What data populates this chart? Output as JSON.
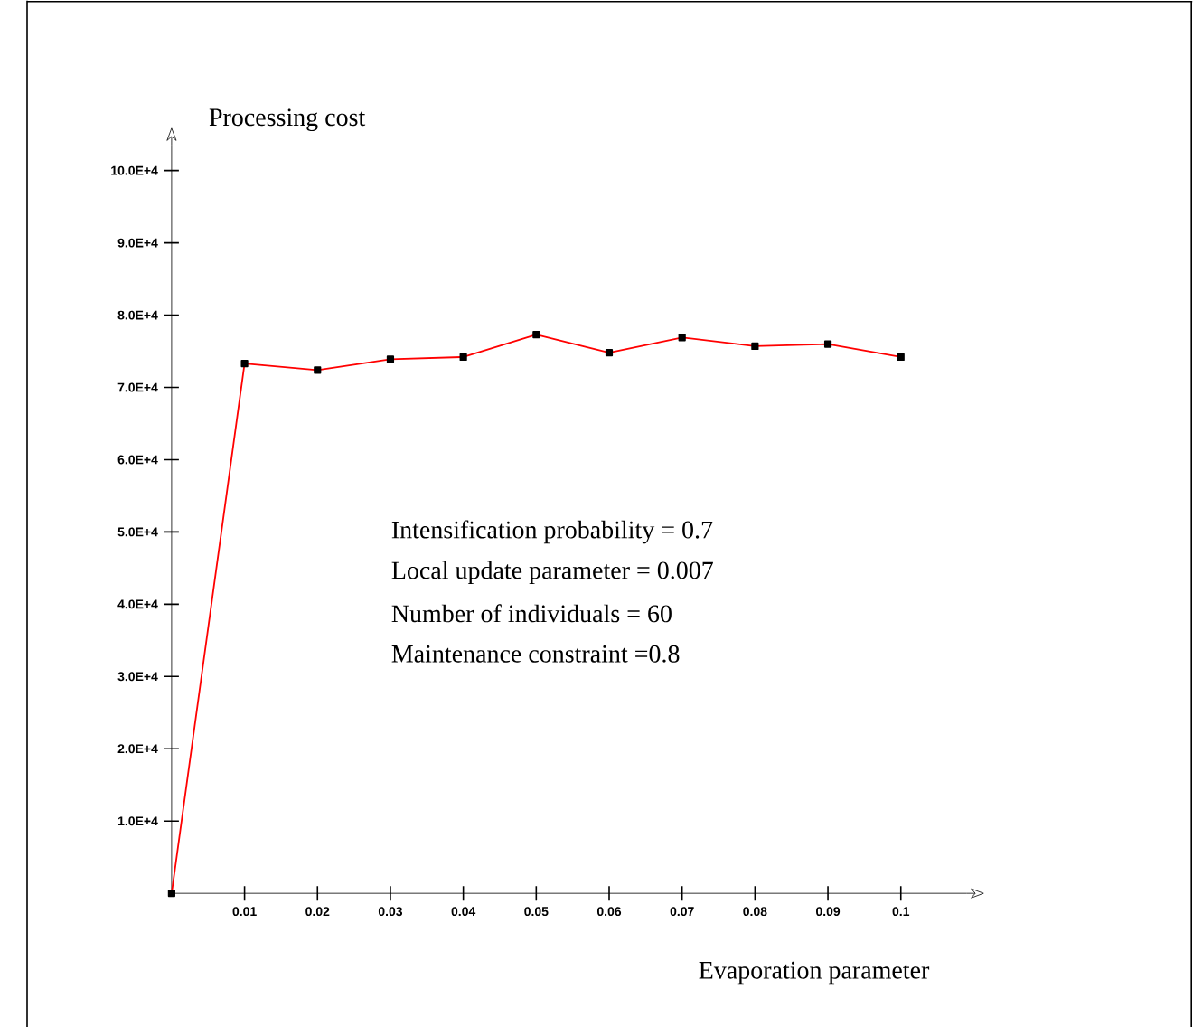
{
  "chart_data": {
    "type": "line",
    "xlabel": "Evaporation parameter",
    "ylabel": "Processing cost",
    "x": [
      0,
      0.01,
      0.02,
      0.03,
      0.04,
      0.05,
      0.06,
      0.07,
      0.08,
      0.09,
      0.1
    ],
    "series": [
      {
        "color": "#ff0000",
        "values": [
          0,
          73300,
          72400,
          73900,
          74200,
          77300,
          74800,
          76900,
          75700,
          76000,
          74200
        ]
      }
    ],
    "marker": "square",
    "line_style": "solid",
    "grid": false,
    "xlim": [
      0,
      0.109
    ],
    "ylim": [
      0,
      103500
    ],
    "xticks": [
      0.01,
      0.02,
      0.03,
      0.04,
      0.05,
      0.06,
      0.07,
      0.08,
      0.09,
      0.1
    ],
    "yticks": [
      {
        "value": 10000,
        "label": "1.0E+4"
      },
      {
        "value": 20000,
        "label": "2.0E+4"
      },
      {
        "value": 30000,
        "label": "3.0E+4"
      },
      {
        "value": 40000,
        "label": "4.0E+4"
      },
      {
        "value": 50000,
        "label": "5.0E+4"
      },
      {
        "value": 60000,
        "label": "6.0E+4"
      },
      {
        "value": 70000,
        "label": "7.0E+4"
      },
      {
        "value": 80000,
        "label": "8.0E+4"
      },
      {
        "value": 90000,
        "label": "9.0E+4"
      },
      {
        "value": 100000,
        "label": "10.0E+4"
      }
    ],
    "annotations": [
      "Intensification probability = 0.7",
      "Local update parameter = 0.007",
      "Number of individuals   = 60",
      "Maintenance constraint =0.8"
    ]
  }
}
